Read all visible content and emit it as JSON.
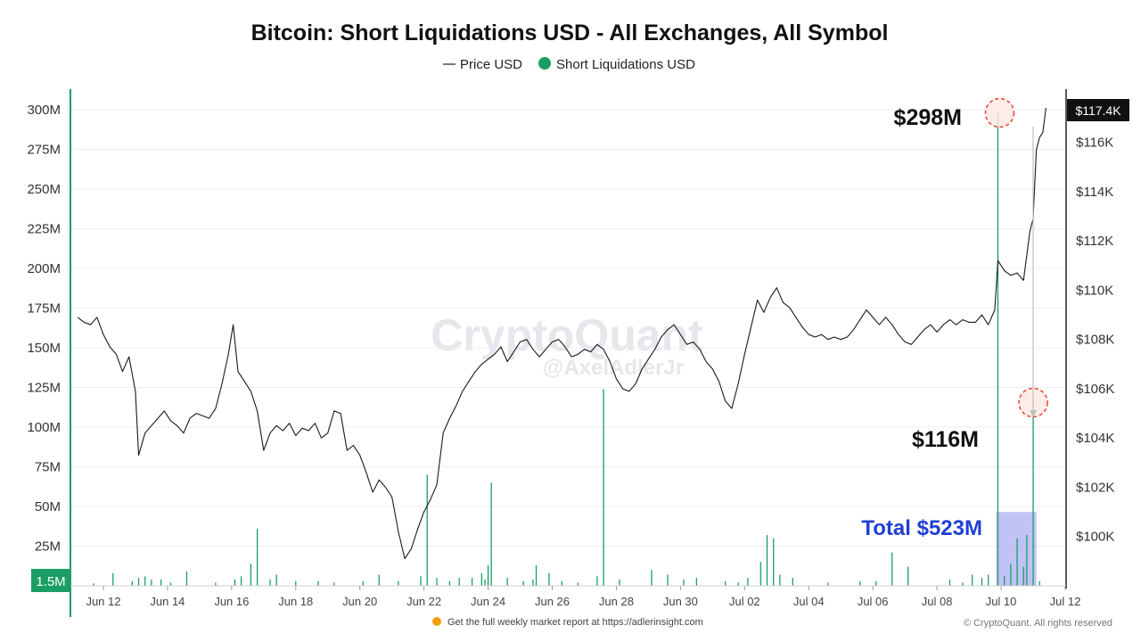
{
  "title": "Bitcoin: Short Liquidations USD - All Exchanges, All Symbol",
  "legend": [
    {
      "label": "Price USD",
      "marker": "line",
      "color": "#1a1a1a"
    },
    {
      "label": "Short Liquidations USD",
      "marker": "dot",
      "color": "#1a9e63"
    }
  ],
  "watermark": {
    "line1": "CryptoQuant",
    "line2": "@AxelAdlerJr"
  },
  "annotations": {
    "peak_label": "$298M",
    "second_label": "$116M",
    "total_label": "Total $523M",
    "price_badge": "$117.4K",
    "left_badge": "1.5M"
  },
  "footer": {
    "promo": "Get the full weekly market report at https://adlerinsight.com",
    "copyright": "© CryptoQuant. All rights reserved"
  },
  "colors": {
    "liquidation": "#1a9e63",
    "price": "#1a1a1a",
    "highlight": "#8f8ff0",
    "circle": "#e74c3c",
    "total_text": "#1f3fd6"
  },
  "chart_data": {
    "type": "bar+line",
    "x_start": "Jun 11",
    "x_end": "Jul 12",
    "x_tick_labels": [
      "Jun 12",
      "Jun 14",
      "Jun 16",
      "Jun 18",
      "Jun 20",
      "Jun 22",
      "Jun 24",
      "Jun 26",
      "Jun 28",
      "Jun 30",
      "Jul 02",
      "Jul 04",
      "Jul 06",
      "Jul 08",
      "Jul 10",
      "Jul 12"
    ],
    "left_axis": {
      "label": "",
      "min": 0,
      "max": 300,
      "unit": "M",
      "ticks": [
        "300M",
        "275M",
        "250M",
        "225M",
        "200M",
        "175M",
        "150M",
        "125M",
        "100M",
        "75M",
        "50M",
        "25M"
      ]
    },
    "right_axis": {
      "label": "",
      "ticks": [
        "$116K",
        "$114K",
        "$112K",
        "$110K",
        "$108K",
        "$106K",
        "$104K",
        "$102K",
        "$100K"
      ],
      "min_k": 98.0,
      "max_k": 117.8
    },
    "liquidations_musd": [
      [
        11.7,
        1.5
      ],
      [
        12.3,
        8
      ],
      [
        12.9,
        3
      ],
      [
        13.1,
        5
      ],
      [
        13.3,
        6
      ],
      [
        13.5,
        4
      ],
      [
        13.8,
        4
      ],
      [
        14.1,
        2
      ],
      [
        14.6,
        9
      ],
      [
        15.5,
        2
      ],
      [
        16.1,
        4
      ],
      [
        16.3,
        6
      ],
      [
        16.6,
        14
      ],
      [
        16.8,
        36
      ],
      [
        17.2,
        4
      ],
      [
        17.4,
        7
      ],
      [
        18.0,
        3
      ],
      [
        18.7,
        3
      ],
      [
        19.2,
        2
      ],
      [
        20.1,
        3
      ],
      [
        20.6,
        7
      ],
      [
        21.2,
        3
      ],
      [
        21.9,
        6
      ],
      [
        22.1,
        70
      ],
      [
        22.4,
        5
      ],
      [
        22.8,
        3
      ],
      [
        23.1,
        5
      ],
      [
        23.5,
        5
      ],
      [
        23.8,
        8
      ],
      [
        23.9,
        4
      ],
      [
        24.0,
        13
      ],
      [
        24.1,
        65
      ],
      [
        24.6,
        5
      ],
      [
        25.1,
        3
      ],
      [
        25.4,
        4
      ],
      [
        25.5,
        13
      ],
      [
        25.9,
        8
      ],
      [
        26.3,
        3
      ],
      [
        26.8,
        2
      ],
      [
        27.4,
        6
      ],
      [
        27.6,
        124
      ],
      [
        28.1,
        4
      ],
      [
        29.1,
        10
      ],
      [
        29.6,
        7
      ],
      [
        30.1,
        4
      ],
      [
        30.5,
        5
      ],
      [
        31.4,
        3
      ],
      [
        31.8,
        2
      ],
      [
        32.1,
        5
      ],
      [
        32.5,
        15
      ],
      [
        32.7,
        32
      ],
      [
        32.9,
        30
      ],
      [
        33.1,
        7
      ],
      [
        33.5,
        5
      ],
      [
        34.6,
        2
      ],
      [
        35.6,
        3
      ],
      [
        36.1,
        3
      ],
      [
        36.6,
        21
      ],
      [
        37.1,
        12
      ],
      [
        38.4,
        4
      ],
      [
        38.8,
        2
      ],
      [
        39.1,
        7
      ],
      [
        39.4,
        5
      ],
      [
        39.6,
        7
      ],
      [
        39.9,
        298
      ],
      [
        40.1,
        6
      ],
      [
        40.3,
        14
      ],
      [
        40.5,
        30
      ],
      [
        40.7,
        12
      ],
      [
        40.8,
        32
      ],
      [
        41.0,
        116
      ],
      [
        41.2,
        3
      ]
    ],
    "price_usd_k": [
      [
        11.2,
        108.9
      ],
      [
        11.4,
        108.7
      ],
      [
        11.6,
        108.6
      ],
      [
        11.8,
        108.9
      ],
      [
        12.0,
        108.2
      ],
      [
        12.2,
        107.7
      ],
      [
        12.4,
        107.4
      ],
      [
        12.6,
        106.7
      ],
      [
        12.8,
        107.3
      ],
      [
        13.0,
        105.9
      ],
      [
        13.1,
        103.3
      ],
      [
        13.3,
        104.2
      ],
      [
        13.5,
        104.5
      ],
      [
        13.7,
        104.8
      ],
      [
        13.9,
        105.1
      ],
      [
        14.1,
        104.7
      ],
      [
        14.3,
        104.5
      ],
      [
        14.5,
        104.2
      ],
      [
        14.7,
        104.8
      ],
      [
        14.9,
        105.0
      ],
      [
        15.1,
        104.9
      ],
      [
        15.3,
        104.8
      ],
      [
        15.5,
        105.2
      ],
      [
        15.7,
        106.2
      ],
      [
        15.9,
        107.4
      ],
      [
        16.05,
        108.6
      ],
      [
        16.2,
        106.7
      ],
      [
        16.4,
        106.3
      ],
      [
        16.6,
        105.9
      ],
      [
        16.8,
        105.1
      ],
      [
        17.0,
        103.5
      ],
      [
        17.2,
        104.2
      ],
      [
        17.4,
        104.5
      ],
      [
        17.6,
        104.3
      ],
      [
        17.8,
        104.6
      ],
      [
        18.0,
        104.1
      ],
      [
        18.2,
        104.4
      ],
      [
        18.4,
        104.3
      ],
      [
        18.6,
        104.6
      ],
      [
        18.8,
        104.0
      ],
      [
        19.0,
        104.2
      ],
      [
        19.2,
        105.1
      ],
      [
        19.4,
        105.0
      ],
      [
        19.6,
        103.5
      ],
      [
        19.8,
        103.7
      ],
      [
        20.0,
        103.3
      ],
      [
        20.2,
        102.6
      ],
      [
        20.4,
        101.8
      ],
      [
        20.6,
        102.3
      ],
      [
        20.8,
        102.0
      ],
      [
        21.0,
        101.6
      ],
      [
        21.2,
        100.2
      ],
      [
        21.4,
        99.1
      ],
      [
        21.6,
        99.5
      ],
      [
        21.8,
        100.3
      ],
      [
        22.0,
        101.0
      ],
      [
        22.2,
        101.5
      ],
      [
        22.4,
        102.1
      ],
      [
        22.6,
        104.2
      ],
      [
        22.8,
        104.8
      ],
      [
        23.0,
        105.3
      ],
      [
        23.2,
        105.9
      ],
      [
        23.4,
        106.3
      ],
      [
        23.6,
        106.7
      ],
      [
        23.8,
        107.0
      ],
      [
        24.0,
        107.2
      ],
      [
        24.2,
        107.4
      ],
      [
        24.4,
        107.7
      ],
      [
        24.6,
        107.1
      ],
      [
        24.8,
        107.5
      ],
      [
        25.0,
        107.9
      ],
      [
        25.2,
        108.0
      ],
      [
        25.4,
        107.6
      ],
      [
        25.6,
        107.3
      ],
      [
        25.8,
        107.6
      ],
      [
        26.0,
        107.9
      ],
      [
        26.2,
        108.0
      ],
      [
        26.4,
        107.7
      ],
      [
        26.6,
        107.3
      ],
      [
        26.8,
        107.4
      ],
      [
        27.0,
        107.6
      ],
      [
        27.2,
        107.5
      ],
      [
        27.4,
        107.8
      ],
      [
        27.6,
        107.6
      ],
      [
        27.8,
        107.1
      ],
      [
        28.0,
        106.4
      ],
      [
        28.2,
        106.0
      ],
      [
        28.4,
        105.9
      ],
      [
        28.6,
        106.2
      ],
      [
        28.8,
        106.8
      ],
      [
        29.0,
        107.2
      ],
      [
        29.2,
        107.6
      ],
      [
        29.4,
        108.1
      ],
      [
        29.6,
        108.4
      ],
      [
        29.8,
        108.6
      ],
      [
        30.0,
        108.2
      ],
      [
        30.2,
        107.8
      ],
      [
        30.4,
        107.9
      ],
      [
        30.6,
        107.6
      ],
      [
        30.8,
        107.1
      ],
      [
        31.0,
        106.8
      ],
      [
        31.2,
        106.3
      ],
      [
        31.4,
        105.5
      ],
      [
        31.6,
        105.2
      ],
      [
        31.8,
        106.2
      ],
      [
        32.0,
        107.4
      ],
      [
        32.2,
        108.5
      ],
      [
        32.4,
        109.6
      ],
      [
        32.6,
        109.1
      ],
      [
        32.8,
        109.7
      ],
      [
        33.0,
        110.1
      ],
      [
        33.2,
        109.5
      ],
      [
        33.4,
        109.3
      ],
      [
        33.6,
        108.9
      ],
      [
        33.8,
        108.5
      ],
      [
        34.0,
        108.2
      ],
      [
        34.2,
        108.1
      ],
      [
        34.4,
        108.2
      ],
      [
        34.6,
        108.0
      ],
      [
        34.8,
        108.1
      ],
      [
        35.0,
        108.0
      ],
      [
        35.2,
        108.1
      ],
      [
        35.4,
        108.4
      ],
      [
        35.6,
        108.8
      ],
      [
        35.8,
        109.2
      ],
      [
        36.0,
        108.9
      ],
      [
        36.2,
        108.6
      ],
      [
        36.4,
        108.9
      ],
      [
        36.6,
        108.6
      ],
      [
        36.8,
        108.2
      ],
      [
        37.0,
        107.9
      ],
      [
        37.2,
        107.8
      ],
      [
        37.4,
        108.1
      ],
      [
        37.6,
        108.4
      ],
      [
        37.8,
        108.6
      ],
      [
        38.0,
        108.3
      ],
      [
        38.2,
        108.6
      ],
      [
        38.4,
        108.8
      ],
      [
        38.6,
        108.6
      ],
      [
        38.8,
        108.8
      ],
      [
        39.0,
        108.7
      ],
      [
        39.2,
        108.7
      ],
      [
        39.4,
        109.0
      ],
      [
        39.6,
        108.6
      ],
      [
        39.8,
        109.2
      ],
      [
        39.9,
        111.2
      ],
      [
        40.1,
        110.8
      ],
      [
        40.3,
        110.6
      ],
      [
        40.5,
        110.7
      ],
      [
        40.7,
        110.4
      ],
      [
        40.9,
        112.4
      ],
      [
        41.0,
        112.9
      ],
      [
        41.1,
        115.7
      ],
      [
        41.2,
        116.2
      ],
      [
        41.3,
        116.4
      ],
      [
        41.4,
        117.4
      ]
    ],
    "highlight_range": [
      "Jul 09 ~22:00",
      "Jul 11 ~01:00"
    ],
    "total_short_liquidations_musd": 523
  }
}
